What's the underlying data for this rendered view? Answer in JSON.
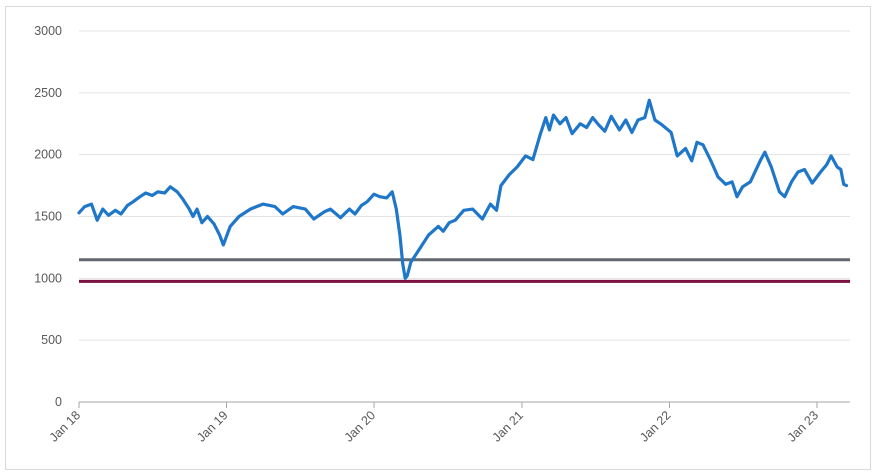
{
  "chart_data": {
    "type": "line",
    "title": "",
    "xlabel": "",
    "ylabel": "",
    "ylim": [
      0,
      3000
    ],
    "y_ticks": [
      0,
      500,
      1000,
      1500,
      2000,
      2500,
      3000
    ],
    "x_ticks": [
      {
        "date": "2018-01-01",
        "label": "Jan 18"
      },
      {
        "date": "2019-01-01",
        "label": "Jan 19"
      },
      {
        "date": "2020-01-01",
        "label": "Jan 20"
      },
      {
        "date": "2021-01-01",
        "label": "Jan 21"
      },
      {
        "date": "2022-01-01",
        "label": "Jan 22"
      },
      {
        "date": "2023-01-01",
        "label": "Jan 23"
      }
    ],
    "xlim": [
      "2018-01-01",
      "2023-03-15"
    ],
    "grid": "horizontal",
    "legend": "none",
    "series": [
      {
        "color": "#1f77c9",
        "points": [
          [
            "2018-01-01",
            1530
          ],
          [
            "2018-01-15",
            1580
          ],
          [
            "2018-02-01",
            1600
          ],
          [
            "2018-02-15",
            1470
          ],
          [
            "2018-03-01",
            1560
          ],
          [
            "2018-03-15",
            1510
          ],
          [
            "2018-04-01",
            1550
          ],
          [
            "2018-04-15",
            1520
          ],
          [
            "2018-05-01",
            1590
          ],
          [
            "2018-05-15",
            1620
          ],
          [
            "2018-06-01",
            1660
          ],
          [
            "2018-06-15",
            1690
          ],
          [
            "2018-07-01",
            1670
          ],
          [
            "2018-07-15",
            1700
          ],
          [
            "2018-08-01",
            1690
          ],
          [
            "2018-08-15",
            1740
          ],
          [
            "2018-09-01",
            1700
          ],
          [
            "2018-09-15",
            1640
          ],
          [
            "2018-10-01",
            1560
          ],
          [
            "2018-10-10",
            1500
          ],
          [
            "2018-10-20",
            1560
          ],
          [
            "2018-11-01",
            1450
          ],
          [
            "2018-11-15",
            1500
          ],
          [
            "2018-12-01",
            1440
          ],
          [
            "2018-12-15",
            1350
          ],
          [
            "2018-12-24",
            1270
          ],
          [
            "2019-01-10",
            1420
          ],
          [
            "2019-02-01",
            1500
          ],
          [
            "2019-03-01",
            1560
          ],
          [
            "2019-04-01",
            1600
          ],
          [
            "2019-05-01",
            1580
          ],
          [
            "2019-05-20",
            1520
          ],
          [
            "2019-06-15",
            1580
          ],
          [
            "2019-07-15",
            1560
          ],
          [
            "2019-08-05",
            1480
          ],
          [
            "2019-09-01",
            1540
          ],
          [
            "2019-09-15",
            1560
          ],
          [
            "2019-10-10",
            1490
          ],
          [
            "2019-11-01",
            1560
          ],
          [
            "2019-11-15",
            1520
          ],
          [
            "2019-12-01",
            1590
          ],
          [
            "2019-12-15",
            1620
          ],
          [
            "2020-01-01",
            1680
          ],
          [
            "2020-01-15",
            1660
          ],
          [
            "2020-02-01",
            1650
          ],
          [
            "2020-02-15",
            1700
          ],
          [
            "2020-02-25",
            1560
          ],
          [
            "2020-03-05",
            1350
          ],
          [
            "2020-03-12",
            1120
          ],
          [
            "2020-03-18",
            1000
          ],
          [
            "2020-03-23",
            1020
          ],
          [
            "2020-04-01",
            1130
          ],
          [
            "2020-04-15",
            1200
          ],
          [
            "2020-05-01",
            1280
          ],
          [
            "2020-05-15",
            1350
          ],
          [
            "2020-06-08",
            1420
          ],
          [
            "2020-06-20",
            1380
          ],
          [
            "2020-07-05",
            1450
          ],
          [
            "2020-07-20",
            1470
          ],
          [
            "2020-08-10",
            1550
          ],
          [
            "2020-09-01",
            1560
          ],
          [
            "2020-09-25",
            1480
          ],
          [
            "2020-10-15",
            1600
          ],
          [
            "2020-10-30",
            1550
          ],
          [
            "2020-11-10",
            1750
          ],
          [
            "2020-12-01",
            1840
          ],
          [
            "2020-12-20",
            1900
          ],
          [
            "2021-01-10",
            1990
          ],
          [
            "2021-01-28",
            1960
          ],
          [
            "2021-02-15",
            2160
          ],
          [
            "2021-03-01",
            2300
          ],
          [
            "2021-03-10",
            2200
          ],
          [
            "2021-03-20",
            2320
          ],
          [
            "2021-04-05",
            2250
          ],
          [
            "2021-04-20",
            2300
          ],
          [
            "2021-05-05",
            2170
          ],
          [
            "2021-05-25",
            2250
          ],
          [
            "2021-06-10",
            2220
          ],
          [
            "2021-06-25",
            2300
          ],
          [
            "2021-07-10",
            2240
          ],
          [
            "2021-07-25",
            2190
          ],
          [
            "2021-08-10",
            2310
          ],
          [
            "2021-08-30",
            2200
          ],
          [
            "2021-09-15",
            2280
          ],
          [
            "2021-09-30",
            2180
          ],
          [
            "2021-10-15",
            2280
          ],
          [
            "2021-11-01",
            2300
          ],
          [
            "2021-11-12",
            2440
          ],
          [
            "2021-11-26",
            2280
          ],
          [
            "2021-12-10",
            2250
          ],
          [
            "2022-01-05",
            2180
          ],
          [
            "2022-01-20",
            1990
          ],
          [
            "2022-02-10",
            2050
          ],
          [
            "2022-02-25",
            1950
          ],
          [
            "2022-03-10",
            2100
          ],
          [
            "2022-03-25",
            2080
          ],
          [
            "2022-04-15",
            1940
          ],
          [
            "2022-05-01",
            1820
          ],
          [
            "2022-05-20",
            1760
          ],
          [
            "2022-06-05",
            1780
          ],
          [
            "2022-06-17",
            1660
          ],
          [
            "2022-07-01",
            1740
          ],
          [
            "2022-07-20",
            1780
          ],
          [
            "2022-08-15",
            1960
          ],
          [
            "2022-08-25",
            2020
          ],
          [
            "2022-09-10",
            1900
          ],
          [
            "2022-09-30",
            1700
          ],
          [
            "2022-10-13",
            1660
          ],
          [
            "2022-10-30",
            1780
          ],
          [
            "2022-11-15",
            1860
          ],
          [
            "2022-12-01",
            1880
          ],
          [
            "2022-12-20",
            1770
          ],
          [
            "2023-01-10",
            1860
          ],
          [
            "2023-01-25",
            1920
          ],
          [
            "2023-02-05",
            1990
          ],
          [
            "2023-02-20",
            1900
          ],
          [
            "2023-03-01",
            1880
          ],
          [
            "2023-03-08",
            1760
          ],
          [
            "2023-03-15",
            1750
          ]
        ]
      }
    ],
    "reference_lines": [
      {
        "y": 1150,
        "color": "#636870"
      },
      {
        "y": 975,
        "color": "#7a1040"
      }
    ]
  }
}
